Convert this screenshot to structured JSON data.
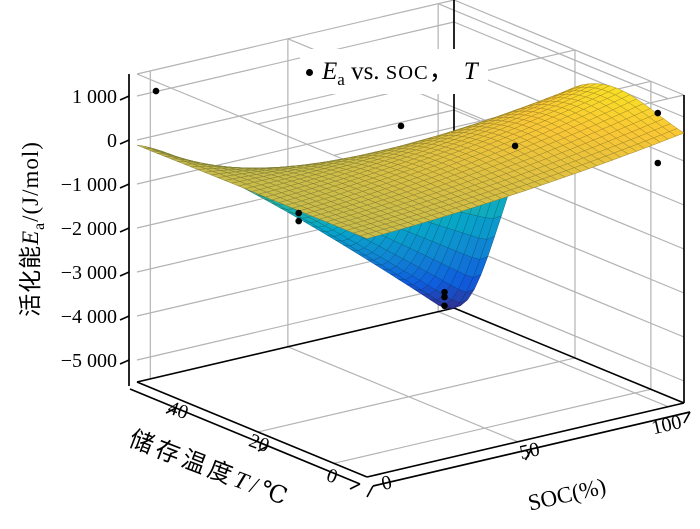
{
  "chart_data": {
    "type": "surface3d_scatter",
    "title": "",
    "axes": {
      "x": {
        "label": "SOC(%)",
        "ticks": [
          0,
          50,
          100
        ],
        "tick_labels": [
          "0",
          "50",
          "100"
        ],
        "range": [
          0,
          105
        ]
      },
      "y": {
        "label": "储存温度T/℃",
        "label_prefix": "储存温度",
        "label_italic": "T",
        "label_suffix": "/℃",
        "ticks": [
          0,
          20,
          40
        ],
        "tick_labels": [
          "0",
          "20",
          "40"
        ],
        "range": [
          -8,
          51
        ]
      },
      "z": {
        "label": "活化能Ea/(J/mol)",
        "label_prefix": "活化能",
        "label_italic": "E",
        "label_sub": "a",
        "label_suffix": "/(J/mol)",
        "ticks": [
          1000,
          0,
          -1000,
          -2000,
          -3000,
          -4000,
          -5000
        ],
        "tick_labels": [
          "1 000",
          "0",
          "−1 000",
          "−2 000",
          "−3 000",
          "−4 000",
          "−5 000"
        ],
        "range": [
          -5500,
          1500
        ]
      }
    },
    "legend": {
      "marker": "dot",
      "series_full": "Ea vs. SOC，T",
      "e": "E",
      "e_sub": "a",
      "mid": " vs. ",
      "soc": "SOC",
      "comma": "，",
      "t": "T"
    },
    "scatter_points": [
      {
        "soc": 6,
        "T": 50,
        "Ea": 1010
      },
      {
        "soc": 47,
        "T": 25,
        "Ea": 610
      },
      {
        "soc": 83,
        "T": 25,
        "Ea": -450
      },
      {
        "soc": 99,
        "T": 5,
        "Ea": 890
      },
      {
        "soc": 99,
        "T": 5,
        "Ea": -245
      },
      {
        "soc": 51,
        "T": 50,
        "Ea": -2520
      },
      {
        "soc": 51,
        "T": 50,
        "Ea": -2700
      },
      {
        "soc": 97,
        "T": 50,
        "Ea": -5090
      },
      {
        "soc": 97,
        "T": 50,
        "Ea": -5200
      },
      {
        "soc": 97,
        "T": 50,
        "Ea": -5400
      }
    ],
    "surface_model": {
      "formula": "Ea(s,t) = c0 + c1*s + c2*s^2 + c3*t + ridge*(s/100)^ridge_pow*exp(-((t-ridge_t0)/ridge_tw)^2) - (cliff_base + cliff*(min(s,cliff_s_cap)/cliff_s_cap)^cliff_pow)*exp(-((t-cliff_t0)/cliff_tw)^2)",
      "c0": -80,
      "c1": 2.2,
      "c2": 0.035,
      "c3": -0.4,
      "ridge": 550,
      "ridge_t0": 15,
      "ridge_tw": 13,
      "ridge_pow": 1.5,
      "cliff": 5900,
      "cliff_base": 17,
      "cliff_t0": 50,
      "cliff_tw": 14,
      "cliff_s_cap": 97,
      "cliff_pow": 1.2,
      "s_domain": [
        0,
        100
      ],
      "t_domain": [
        0,
        50
      ]
    },
    "colormap": {
      "name": "parula",
      "domain": [
        -5500,
        1500
      ],
      "stops": [
        [
          0.0,
          "#352a87"
        ],
        [
          0.125,
          "#0f5cdd"
        ],
        [
          0.25,
          "#1086d3"
        ],
        [
          0.375,
          "#07a6c8"
        ],
        [
          0.5,
          "#26b7a4"
        ],
        [
          0.625,
          "#69c174"
        ],
        [
          0.75,
          "#bdb950"
        ],
        [
          0.875,
          "#f9c736"
        ],
        [
          1.0,
          "#f9fb14"
        ]
      ]
    },
    "grid": {
      "grid_color": "#b3b3b3",
      "axis_color": "#000000",
      "background": "#ffffff"
    }
  }
}
